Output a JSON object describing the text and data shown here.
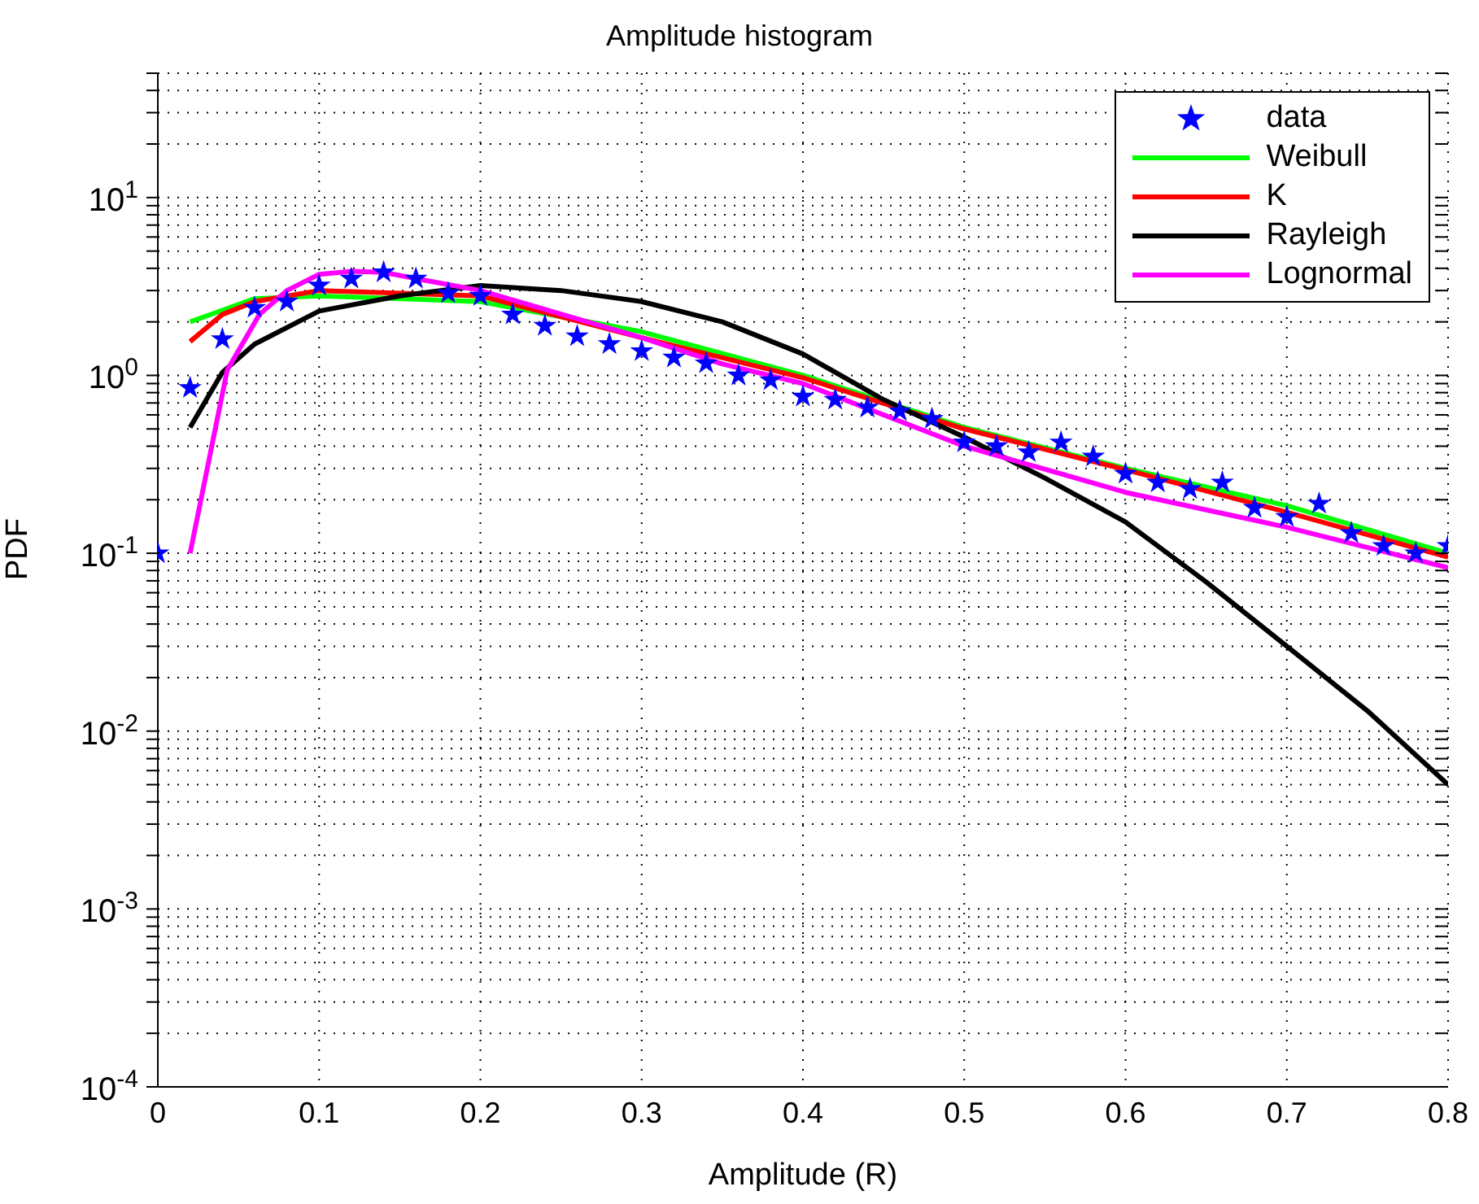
{
  "chart_data": {
    "type": "line",
    "title": "Amplitude histogram",
    "xlabel": "Amplitude (R)",
    "ylabel": "PDF",
    "log": "y",
    "grid": true,
    "legend": "top right",
    "xlim": [
      0,
      0.8
    ],
    "xticks": [
      0,
      0.1,
      0.2,
      0.3,
      0.4,
      0.5,
      0.6,
      0.7,
      0.8
    ],
    "ylim": [
      0.0001,
      50
    ],
    "yticks": [
      {
        "value": 0.0001,
        "label": "10$^{-4}$"
      },
      {
        "value": 0.0002,
        "label": null
      },
      {
        "value": 0.0003,
        "label": null
      },
      {
        "value": 0.0004,
        "label": null
      },
      {
        "value": 0.0005,
        "label": null
      },
      {
        "value": 0.0006,
        "label": null
      },
      {
        "value": 0.0007,
        "label": null
      },
      {
        "value": 0.0008,
        "label": null
      },
      {
        "value": 0.0009,
        "label": null
      },
      {
        "value": 0.001,
        "label": "10$^{-3}$"
      },
      {
        "value": 0.002,
        "label": null
      },
      {
        "value": 0.003,
        "label": null
      },
      {
        "value": 0.004,
        "label": null
      },
      {
        "value": 0.005,
        "label": null
      },
      {
        "value": 0.006,
        "label": null
      },
      {
        "value": 0.007,
        "label": null
      },
      {
        "value": 0.008,
        "label": null
      },
      {
        "value": 0.009,
        "label": null
      },
      {
        "value": 0.01,
        "label": "10$^{-2}$"
      },
      {
        "value": 0.02,
        "label": null
      },
      {
        "value": 0.03,
        "label": null
      },
      {
        "value": 0.04,
        "label": null
      },
      {
        "value": 0.05,
        "label": null
      },
      {
        "value": 0.06,
        "label": null
      },
      {
        "value": 0.07,
        "label": null
      },
      {
        "value": 0.08,
        "label": null
      },
      {
        "value": 0.09,
        "label": null
      },
      {
        "value": 0.1,
        "label": "10$^{-1}$"
      },
      {
        "value": 0.2,
        "label": null
      },
      {
        "value": 0.3,
        "label": null
      },
      {
        "value": 0.4,
        "label": null
      },
      {
        "value": 0.5,
        "label": null
      },
      {
        "value": 0.6,
        "label": null
      },
      {
        "value": 0.7,
        "label": null
      },
      {
        "value": 0.8,
        "label": null
      },
      {
        "value": 0.9,
        "label": null
      },
      {
        "value": 1,
        "label": "10$^{0}$"
      },
      {
        "value": 2,
        "label": null
      },
      {
        "value": 3,
        "label": null
      },
      {
        "value": 4,
        "label": null
      },
      {
        "value": 5,
        "label": null
      },
      {
        "value": 6,
        "label": null
      },
      {
        "value": 7,
        "label": null
      },
      {
        "value": 8,
        "label": null
      },
      {
        "value": 9,
        "label": null
      },
      {
        "value": 10,
        "label": "10$^{1}$"
      },
      {
        "value": 20,
        "label": null
      },
      {
        "value": 30,
        "label": null
      },
      {
        "value": 40,
        "label": null
      },
      {
        "value": 50,
        "label": null
      }
    ],
    "series": [
      {
        "name": "data",
        "type": "scatter",
        "marker": "star",
        "color": "#0000ff",
        "x": [
          0,
          0.02,
          0.04,
          0.06,
          0.08,
          0.1,
          0.12,
          0.14,
          0.16,
          0.18,
          0.2,
          0.22,
          0.24,
          0.26,
          0.28,
          0.3,
          0.32,
          0.34,
          0.36,
          0.38,
          0.4,
          0.42,
          0.44,
          0.46,
          0.48,
          0.5,
          0.52,
          0.54,
          0.56,
          0.58,
          0.6,
          0.62,
          0.64,
          0.66,
          0.68,
          0.7,
          0.72,
          0.74,
          0.76,
          0.78,
          0.8
        ],
        "values": [
          0.1,
          0.85,
          1.6,
          2.4,
          2.6,
          3.2,
          3.5,
          3.8,
          3.5,
          2.9,
          2.8,
          2.2,
          1.9,
          1.66,
          1.5,
          1.37,
          1.26,
          1.17,
          1.0,
          0.94,
          0.76,
          0.73,
          0.66,
          0.63,
          0.57,
          0.42,
          0.4,
          0.37,
          0.42,
          0.35,
          0.28,
          0.25,
          0.23,
          0.25,
          0.18,
          0.16,
          0.19,
          0.13,
          0.11,
          0.1,
          0.11
        ]
      },
      {
        "name": "Weibull",
        "color": "#00ff00",
        "x": [
          0.02,
          0.06,
          0.1,
          0.2,
          0.3,
          0.4,
          0.5,
          0.6,
          0.7,
          0.8
        ],
        "values": [
          2.0,
          2.7,
          2.8,
          2.6,
          1.76,
          1.0,
          0.51,
          0.3,
          0.185,
          0.1
        ]
      },
      {
        "name": "K",
        "color": "#ff0000",
        "x": [
          0.02,
          0.04,
          0.06,
          0.1,
          0.2,
          0.3,
          0.4,
          0.5,
          0.6,
          0.7,
          0.8
        ],
        "values": [
          1.55,
          2.2,
          2.6,
          3.0,
          2.8,
          1.63,
          0.97,
          0.5,
          0.295,
          0.17,
          0.095
        ]
      },
      {
        "name": "Rayleigh",
        "color": "#000000",
        "x": [
          0.02,
          0.04,
          0.06,
          0.1,
          0.15,
          0.2,
          0.25,
          0.3,
          0.35,
          0.4,
          0.45,
          0.5,
          0.55,
          0.6,
          0.65,
          0.7,
          0.75,
          0.8
        ],
        "values": [
          0.51,
          1.04,
          1.5,
          2.3,
          2.8,
          3.2,
          3.0,
          2.6,
          2.0,
          1.32,
          0.73,
          0.45,
          0.265,
          0.15,
          0.069,
          0.03,
          0.013,
          0.005
        ]
      },
      {
        "name": "Lognormal",
        "color": "#ff00ff",
        "x": [
          0.02,
          0.043,
          0.063,
          0.08,
          0.1,
          0.12,
          0.14,
          0.16,
          0.2,
          0.3,
          0.35,
          0.4,
          0.5,
          0.6,
          0.7,
          0.8
        ],
        "values": [
          0.1,
          1.07,
          2.2,
          3.0,
          3.7,
          3.85,
          3.8,
          3.5,
          3.0,
          1.63,
          1.16,
          0.9,
          0.4,
          0.22,
          0.14,
          0.083
        ]
      }
    ]
  }
}
